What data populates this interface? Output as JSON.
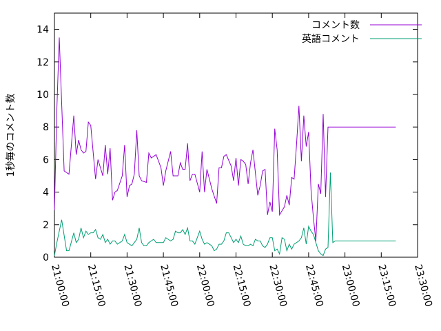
{
  "chart_data": {
    "type": "line",
    "title": "",
    "xlabel": "",
    "ylabel": "1秒毎のコメント数",
    "x_ticks": [
      "21:00:00",
      "21:15:00",
      "21:30:00",
      "21:45:00",
      "22:00:00",
      "22:15:00",
      "22:30:00",
      "22:45:00",
      "23:00:00",
      "23:15:00",
      "23:30:00"
    ],
    "x_tick_minutes": [
      0,
      15,
      30,
      45,
      60,
      75,
      90,
      105,
      120,
      135,
      150
    ],
    "x_range_minutes": [
      0,
      150
    ],
    "y_ticks": [
      0,
      2,
      4,
      6,
      8,
      10,
      12,
      14
    ],
    "ylim": [
      0,
      15
    ],
    "grid": false,
    "legend_position": "top-right",
    "series": [
      {
        "name": "コメント数",
        "color": "#9400d3",
        "x": [
          0,
          1,
          2,
          4,
          6,
          8,
          9,
          10,
          11,
          12,
          13,
          14,
          15,
          17,
          18,
          20,
          21,
          22,
          23,
          24,
          25,
          26,
          28,
          29,
          30,
          31,
          32,
          33,
          34,
          35,
          36,
          38,
          39,
          40,
          42,
          44,
          45,
          46,
          48,
          49,
          51,
          52,
          53,
          54,
          55,
          56,
          57,
          58,
          60,
          61,
          62,
          63,
          64,
          65,
          67,
          68,
          69,
          70,
          71,
          73,
          74,
          75,
          76,
          77,
          78,
          79,
          80,
          81,
          82,
          84,
          85,
          86,
          87,
          88,
          89,
          90,
          91,
          92,
          93,
          95,
          96,
          97,
          98,
          99,
          100,
          101,
          102,
          103,
          104,
          105,
          106,
          107,
          108,
          109,
          110,
          111,
          112,
          113,
          114,
          115,
          116,
          117,
          118,
          119,
          120,
          121,
          122,
          123,
          124,
          125,
          126,
          127,
          128,
          129,
          130,
          131,
          132,
          133,
          134,
          135,
          136,
          137,
          138,
          139,
          140,
          141
        ],
        "values": [
          2.9,
          9.1,
          13.5,
          5.3,
          5.1,
          8.7,
          6.3,
          7.2,
          6.6,
          6.4,
          6.5,
          8.3,
          8.1,
          4.8,
          6.0,
          5.0,
          6.9,
          5.1,
          6.7,
          3.5,
          4.0,
          4.1,
          5.0,
          6.9,
          3.7,
          4.4,
          4.5,
          5.1,
          7.8,
          5.0,
          4.7,
          4.6,
          6.4,
          6.1,
          6.3,
          5.5,
          4.4,
          5.3,
          6.5,
          5.0,
          5.0,
          5.8,
          5.4,
          5.4,
          7.0,
          4.7,
          5.1,
          5.1,
          4.0,
          6.5,
          4.0,
          5.4,
          4.8,
          4.2,
          3.3,
          5.5,
          5.5,
          6.2,
          6.3,
          5.6,
          4.7,
          6.1,
          4.4,
          6.0,
          5.9,
          5.7,
          4.5,
          5.8,
          6.6,
          3.8,
          4.4,
          5.3,
          5.4,
          2.6,
          3.4,
          2.8,
          7.9,
          6.6,
          2.6,
          3.1,
          3.8,
          3.2,
          4.9,
          4.8,
          6.9,
          9.3,
          5.9,
          8.7,
          6.8,
          7.7,
          4.1,
          2.4,
          1.0,
          4.5,
          3.9,
          8.8,
          3.7,
          8.0,
          8.0,
          8.0,
          8.0,
          8.0,
          8.0,
          8.0,
          8.0,
          8.0,
          8.0,
          8.0,
          8.0,
          8.0,
          8.0,
          8.0,
          8.0,
          8.0,
          8.0,
          8.0,
          8.0,
          8.0,
          8.0,
          8.0,
          8.0,
          8.0,
          8.0,
          8.0,
          8.0,
          8.0
        ],
        "x_trim_note": ""
      },
      {
        "name": "英語コメント",
        "color": "#009e73",
        "x": [
          0,
          1,
          3,
          5,
          6,
          8,
          9,
          10,
          11,
          12,
          13,
          14,
          15,
          16,
          17,
          18,
          19,
          20,
          21,
          22,
          23,
          24,
          25,
          26,
          28,
          29,
          30,
          31,
          32,
          33,
          34,
          35,
          36,
          37,
          38,
          39,
          40,
          41,
          42,
          43,
          44,
          45,
          46,
          47,
          48,
          49,
          50,
          51,
          52,
          53,
          54,
          55,
          56,
          57,
          58,
          59,
          60,
          61,
          62,
          63,
          64,
          65,
          66,
          67,
          68,
          69,
          70,
          71,
          72,
          73,
          74,
          75,
          76,
          77,
          78,
          79,
          80,
          81,
          82,
          83,
          84,
          85,
          86,
          87,
          88,
          89,
          90,
          91,
          92,
          93,
          94,
          95,
          96,
          97,
          98,
          99,
          100,
          101,
          102,
          103,
          104,
          105,
          106,
          107,
          108,
          109,
          110,
          111,
          112,
          113,
          114,
          115,
          116,
          117,
          118,
          119,
          120,
          121,
          122,
          123,
          124,
          125,
          126,
          127,
          128,
          129,
          130,
          131,
          132,
          133,
          134,
          135,
          136,
          137,
          138,
          139,
          140,
          141
        ],
        "values": [
          0.1,
          0.9,
          2.3,
          0.4,
          0.4,
          1.5,
          0.9,
          1.1,
          1.8,
          1.2,
          1.6,
          1.4,
          1.5,
          1.5,
          1.7,
          1.2,
          1.1,
          1.4,
          0.9,
          1.1,
          0.8,
          1.0,
          1.0,
          0.8,
          1.0,
          1.4,
          0.9,
          0.8,
          0.7,
          0.9,
          1.1,
          1.8,
          0.9,
          0.7,
          0.7,
          0.9,
          1.0,
          1.1,
          0.9,
          0.9,
          0.9,
          0.9,
          1.2,
          1.1,
          1.0,
          1.1,
          1.6,
          1.5,
          1.5,
          1.7,
          1.4,
          1.8,
          1.0,
          1.0,
          0.8,
          1.2,
          1.6,
          1.1,
          0.8,
          0.9,
          0.8,
          0.7,
          0.4,
          0.5,
          0.8,
          0.8,
          1.0,
          1.5,
          1.5,
          1.2,
          0.9,
          1.1,
          0.9,
          1.3,
          0.8,
          0.7,
          0.7,
          0.8,
          0.7,
          1.1,
          1.0,
          1.0,
          0.7,
          0.6,
          0.8,
          1.2,
          1.2,
          0.4,
          0.5,
          0.2,
          1.2,
          1.1,
          0.4,
          0.8,
          0.5,
          0.8,
          0.9,
          1.0,
          1.2,
          1.8,
          0.8,
          1.9,
          1.6,
          1.4,
          0.9,
          0.4,
          0.2,
          0.1,
          0.5,
          0.6,
          5.2,
          0.9,
          1.0,
          1.0,
          1.0,
          1.0,
          1.0,
          1.0,
          1.0,
          1.0,
          1.0,
          1.0,
          1.0,
          1.0,
          1.0,
          1.0,
          1.0,
          1.0,
          1.0,
          1.0,
          1.0,
          1.0,
          1.0,
          1.0,
          1.0,
          1.0,
          1.0,
          1.0
        ]
      }
    ]
  }
}
